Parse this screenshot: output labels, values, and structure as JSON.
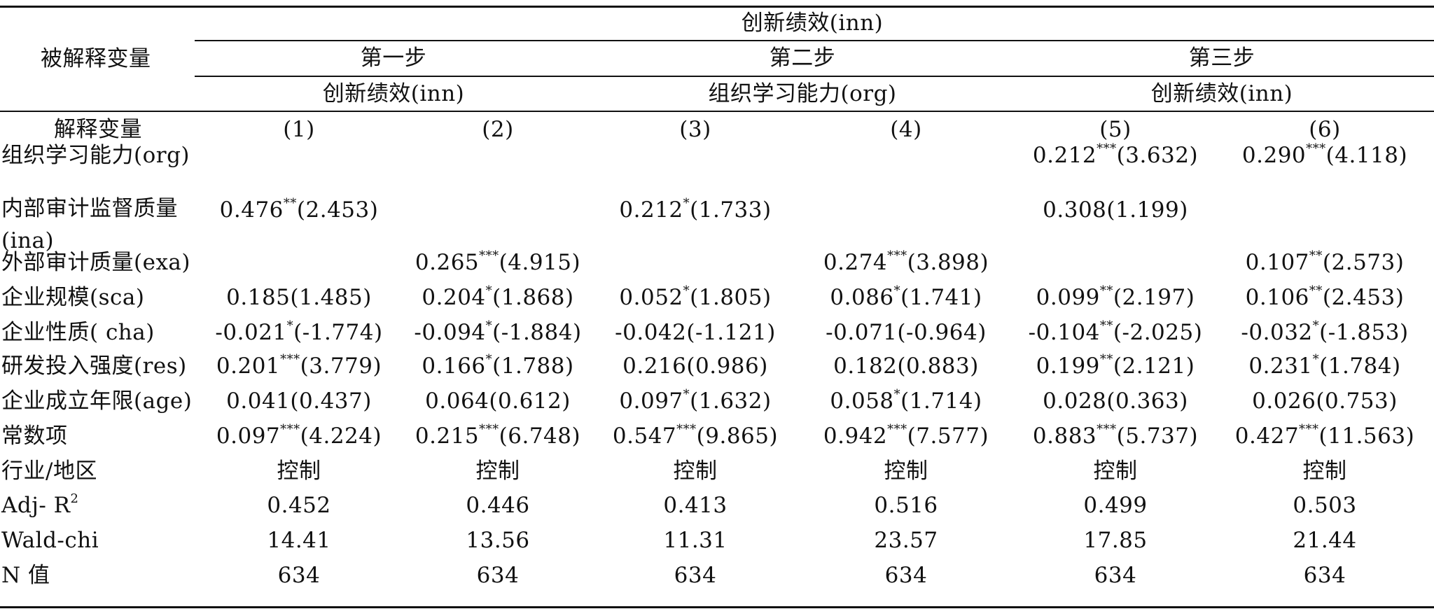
{
  "table": {
    "corner_label": "被解释变量",
    "dependent_top": "创新绩效(inn)",
    "steps": [
      {
        "label": "第一步",
        "sub": "创新绩效(inn)"
      },
      {
        "label": "第二步",
        "sub": "组织学习能力(org)"
      },
      {
        "label": "第三步",
        "sub": "创新绩效(inn)"
      }
    ],
    "explanatory_label": "解释变量",
    "columns": [
      "(1)",
      "(2)",
      "(3)",
      "(4)",
      "(5)",
      "(6)"
    ],
    "rows": [
      {
        "label": "组织学习能力(org)",
        "cells": [
          {},
          {},
          {},
          {},
          {
            "v": "0.212",
            "s": "***",
            "t": "(3.632)"
          },
          {
            "v": "0.290",
            "s": "***",
            "t": "(4.118)"
          }
        ]
      },
      {
        "label": "内部审计监督质量",
        "label2": "(ina)",
        "cells": [
          {
            "v": "0.476",
            "s": "**",
            "t": "(2.453)"
          },
          {},
          {
            "v": "0.212",
            "s": "*",
            "t": "(1.733)"
          },
          {},
          {
            "v": "0.308",
            "s": "",
            "t": "(1.199)"
          },
          {}
        ]
      },
      {
        "label": "外部审计质量(exa)",
        "cells": [
          {},
          {
            "v": "0.265",
            "s": "***",
            "t": "(4.915)"
          },
          {},
          {
            "v": "0.274",
            "s": "***",
            "t": "(3.898)"
          },
          {},
          {
            "v": "0.107",
            "s": "**",
            "t": "(2.573)"
          }
        ]
      },
      {
        "label": "企业规模(sca)",
        "cells": [
          {
            "v": "0.185",
            "s": "",
            "t": "(1.485)"
          },
          {
            "v": "0.204",
            "s": "*",
            "t": "(1.868)"
          },
          {
            "v": "0.052",
            "s": "*",
            "t": "(1.805)"
          },
          {
            "v": "0.086",
            "s": "*",
            "t": "(1.741)"
          },
          {
            "v": "0.099",
            "s": "**",
            "t": "(2.197)"
          },
          {
            "v": "0.106",
            "s": "**",
            "t": "(2.453)"
          }
        ]
      },
      {
        "label": "企业性质( cha)",
        "cells": [
          {
            "v": "-0.021",
            "s": "*",
            "t": "(-1.774)"
          },
          {
            "v": "-0.094",
            "s": "*",
            "t": "(-1.884)"
          },
          {
            "v": "-0.042",
            "s": "",
            "t": "(-1.121)"
          },
          {
            "v": "-0.071",
            "s": "",
            "t": "(-0.964)"
          },
          {
            "v": "-0.104",
            "s": "**",
            "t": "(-2.025)"
          },
          {
            "v": "-0.032",
            "s": "*",
            "t": "(-1.853)"
          }
        ]
      },
      {
        "label": "研发投入强度(res)",
        "cells": [
          {
            "v": "0.201",
            "s": "***",
            "t": "(3.779)"
          },
          {
            "v": "0.166",
            "s": "*",
            "t": "(1.788)"
          },
          {
            "v": "0.216",
            "s": "",
            "t": "(0.986)"
          },
          {
            "v": "0.182",
            "s": "",
            "t": "(0.883)"
          },
          {
            "v": "0.199",
            "s": "**",
            "t": "(2.121)"
          },
          {
            "v": "0.231",
            "s": "*",
            "t": "(1.784)"
          }
        ]
      },
      {
        "label": "企业成立年限(age)",
        "cells": [
          {
            "v": "0.041",
            "s": "",
            "t": "(0.437)"
          },
          {
            "v": "0.064",
            "s": "",
            "t": "(0.612)"
          },
          {
            "v": "0.097",
            "s": "*",
            "t": "(1.632)"
          },
          {
            "v": "0.058",
            "s": "*",
            "t": "(1.714)"
          },
          {
            "v": "0.028",
            "s": "",
            "t": "(0.363)"
          },
          {
            "v": "0.026",
            "s": "",
            "t": "(0.753)"
          }
        ]
      },
      {
        "label": "常数项",
        "cells": [
          {
            "v": "0.097",
            "s": "***",
            "t": "(4.224)"
          },
          {
            "v": "0.215",
            "s": "***",
            "t": "(6.748)"
          },
          {
            "v": "0.547",
            "s": "***",
            "t": "(9.865)"
          },
          {
            "v": "0.942",
            "s": "***",
            "t": "(7.577)"
          },
          {
            "v": "0.883",
            "s": "***",
            "t": "(5.737)"
          },
          {
            "v": "0.427",
            "s": "***",
            "t": "(11.563)"
          }
        ]
      },
      {
        "label": "行业/地区",
        "cells": [
          {
            "v": "控制"
          },
          {
            "v": "控制"
          },
          {
            "v": "控制"
          },
          {
            "v": "控制"
          },
          {
            "v": "控制"
          },
          {
            "v": "控制"
          }
        ]
      },
      {
        "label": "Adj- R",
        "label_sup": "2",
        "cells": [
          {
            "v": "0.452"
          },
          {
            "v": "0.446"
          },
          {
            "v": "0.413"
          },
          {
            "v": "0.516"
          },
          {
            "v": "0.499"
          },
          {
            "v": "0.503"
          }
        ]
      },
      {
        "label": "Wald-chi",
        "cells": [
          {
            "v": "14.41"
          },
          {
            "v": "13.56"
          },
          {
            "v": "11.31"
          },
          {
            "v": "23.57"
          },
          {
            "v": "17.85"
          },
          {
            "v": "21.44"
          }
        ]
      },
      {
        "label": "N 值",
        "cells": [
          {
            "v": "634"
          },
          {
            "v": "634"
          },
          {
            "v": "634"
          },
          {
            "v": "634"
          },
          {
            "v": "634"
          },
          {
            "v": "634"
          }
        ]
      }
    ]
  }
}
